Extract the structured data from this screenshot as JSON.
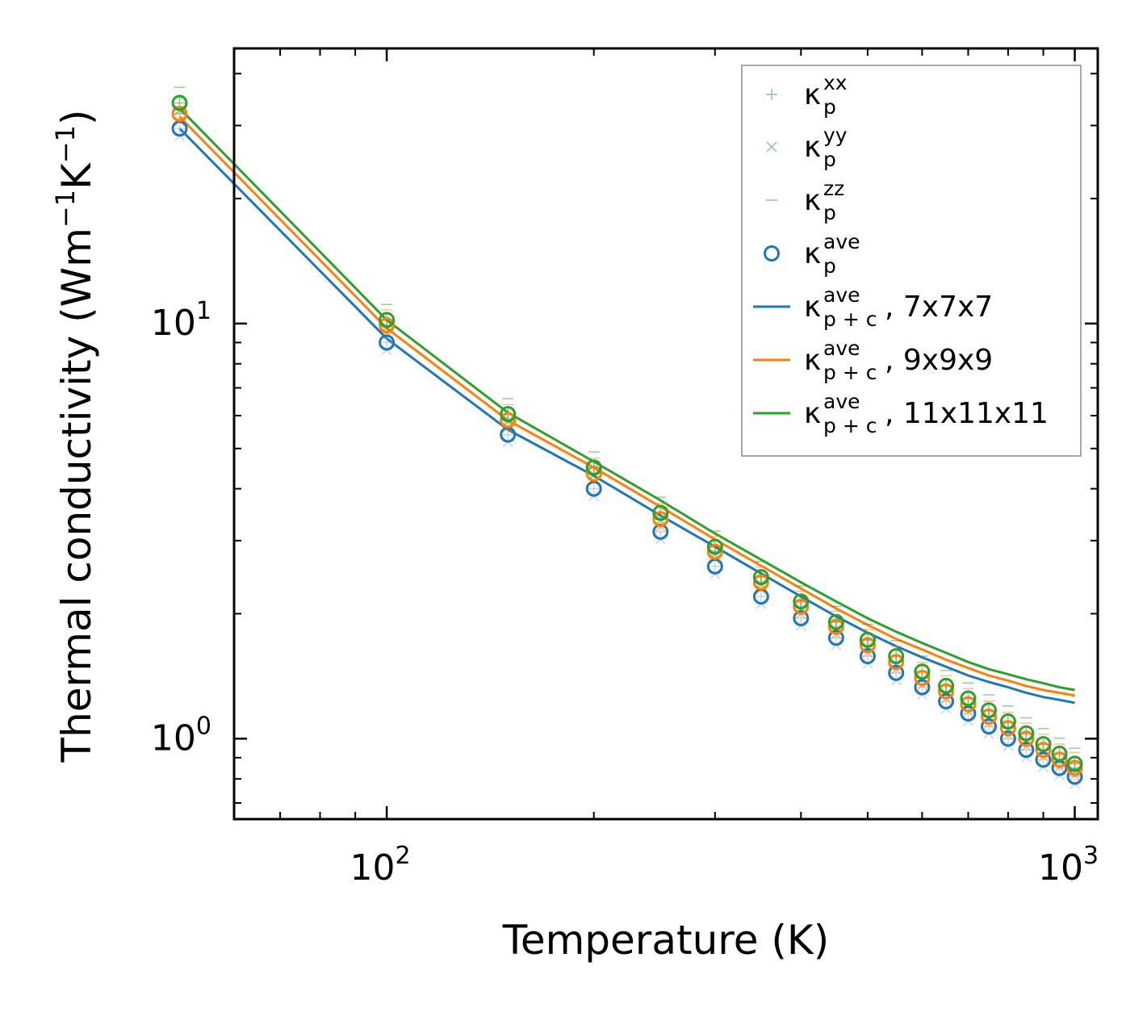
{
  "chart_data": {
    "type": "line",
    "scale": {
      "x": "log",
      "y": "log"
    },
    "xlabel": "Temperature (K)",
    "ylabel": {
      "main": "Thermal conductivity (Wm",
      "exp1": "−1",
      "mid": "K",
      "exp2": "−1",
      "end": ")"
    },
    "xlim": [
      60,
      1080
    ],
    "ylim": [
      0.64,
      46
    ],
    "x_ticks": [
      {
        "base": "10",
        "exp": "2",
        "value": 100
      },
      {
        "base": "10",
        "exp": "3",
        "value": 1000
      }
    ],
    "y_ticks": [
      {
        "base": "10",
        "exp": "0",
        "value": 1
      },
      {
        "base": "10",
        "exp": "1",
        "value": 10
      }
    ],
    "x": [
      50,
      100,
      150,
      200,
      250,
      300,
      350,
      400,
      450,
      500,
      550,
      600,
      650,
      700,
      750,
      800,
      850,
      900,
      950,
      1000
    ],
    "lines": [
      {
        "name": "7x7x7",
        "color": "#1f77b4",
        "values": [
          29.5,
          9.2,
          5.55,
          4.3,
          3.45,
          2.9,
          2.5,
          2.2,
          1.97,
          1.8,
          1.67,
          1.57,
          1.49,
          1.42,
          1.37,
          1.33,
          1.29,
          1.26,
          1.24,
          1.22
        ]
      },
      {
        "name": "9x9x9",
        "color": "#ff7f0e",
        "values": [
          31.5,
          9.75,
          5.85,
          4.5,
          3.62,
          3.02,
          2.61,
          2.3,
          2.06,
          1.88,
          1.74,
          1.64,
          1.55,
          1.48,
          1.42,
          1.38,
          1.34,
          1.31,
          1.29,
          1.27
        ]
      },
      {
        "name": "11x11x11",
        "color": "#2ca02c",
        "values": [
          33.0,
          10.2,
          6.1,
          4.65,
          3.75,
          3.12,
          2.7,
          2.38,
          2.14,
          1.95,
          1.81,
          1.7,
          1.61,
          1.53,
          1.47,
          1.43,
          1.39,
          1.36,
          1.33,
          1.31
        ]
      }
    ],
    "ave": {
      "7x7x7": [
        29.5,
        9.0,
        5.4,
        4.0,
        3.15,
        2.6,
        2.2,
        1.95,
        1.75,
        1.58,
        1.44,
        1.33,
        1.23,
        1.15,
        1.07,
        1.0,
        0.94,
        0.89,
        0.85,
        0.81
      ],
      "9x9x9": [
        32.0,
        9.9,
        5.85,
        4.35,
        3.38,
        2.82,
        2.38,
        2.08,
        1.86,
        1.68,
        1.53,
        1.4,
        1.3,
        1.21,
        1.13,
        1.06,
        1.0,
        0.94,
        0.89,
        0.85
      ],
      "11x11x11": [
        34.0,
        10.2,
        6.05,
        4.5,
        3.5,
        2.9,
        2.45,
        2.14,
        1.91,
        1.73,
        1.58,
        1.45,
        1.34,
        1.25,
        1.17,
        1.1,
        1.03,
        0.97,
        0.92,
        0.87
      ]
    },
    "direction_spread": {
      "xx": 1.0,
      "yy": 0.96,
      "zz": 1.09
    },
    "legend": {
      "position": "top-right",
      "entries": [
        {
          "kind": "plus",
          "kappa": "κ",
          "sub": "p",
          "sup": "xx",
          "suffix": ""
        },
        {
          "kind": "cross",
          "kappa": "κ",
          "sub": "p",
          "sup": "yy",
          "suffix": ""
        },
        {
          "kind": "dash",
          "kappa": "κ",
          "sub": "p",
          "sup": "zz",
          "suffix": ""
        },
        {
          "kind": "circle",
          "kappa": "κ",
          "sub": "p",
          "sup": "ave",
          "suffix": ""
        },
        {
          "kind": "line",
          "color": "#1f77b4",
          "kappa": "κ",
          "sub": "p + c",
          "sup": "ave",
          "suffix": ", 7x7x7"
        },
        {
          "kind": "line",
          "color": "#ff7f0e",
          "kappa": "κ",
          "sub": "p + c",
          "sup": "ave",
          "suffix": ", 9x9x9"
        },
        {
          "kind": "line",
          "color": "#2ca02c",
          "kappa": "κ",
          "sub": "p + c",
          "sup": "ave",
          "suffix": ", 11x11x11"
        }
      ]
    },
    "colors": {
      "marker_light": "#8db8dd",
      "blue": "#1f77b4",
      "orange": "#ff7f0e",
      "green": "#2ca02c"
    }
  }
}
